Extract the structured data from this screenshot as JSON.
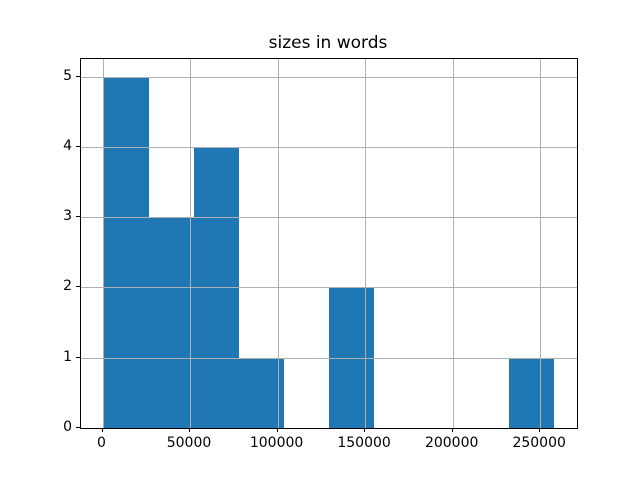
{
  "chart_data": {
    "type": "bar",
    "subtype": "histogram",
    "title": "sizes in words",
    "xlabel": "",
    "ylabel": "",
    "bin_edges": [
      600,
      26350,
      52100,
      77850,
      103600,
      129350,
      155100,
      180850,
      206600,
      232350,
      258100
    ],
    "counts": [
      5,
      3,
      4,
      1,
      0,
      2,
      0,
      0,
      0,
      1
    ],
    "xlim": [
      -12250,
      271000
    ],
    "ylim": [
      0,
      5.25
    ],
    "x_ticks": [
      0,
      50000,
      100000,
      150000,
      200000,
      250000
    ],
    "x_tick_labels": [
      "0",
      "50000",
      "100000",
      "150000",
      "200000",
      "250000"
    ],
    "y_ticks": [
      0,
      1,
      2,
      3,
      4,
      5
    ],
    "y_tick_labels": [
      "0",
      "1",
      "2",
      "3",
      "4",
      "5"
    ],
    "grid": true,
    "grid_above_bars": true,
    "legend": null,
    "colors": {
      "bar": "#1f77b4",
      "grid": "#b0b0b0",
      "spine": "#000000",
      "background": "#ffffff",
      "text": "#000000"
    }
  }
}
